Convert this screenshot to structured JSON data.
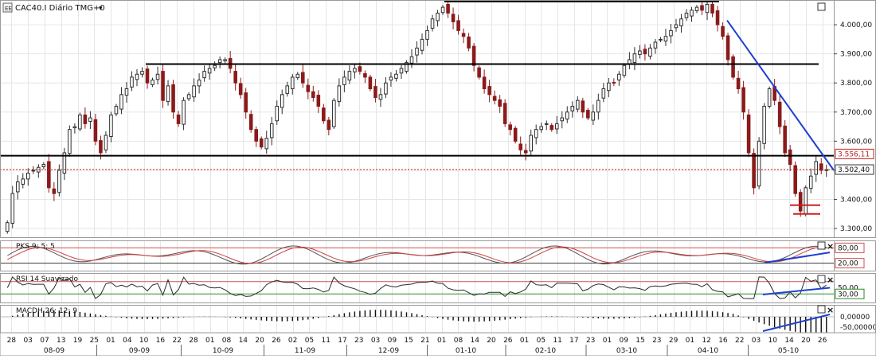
{
  "title": "CAC40.I Diário TMG+0",
  "title_arrow": "▾",
  "colors": {
    "up_candle": "#2f2f2f",
    "down_candle": "#8b1a1a",
    "trendline_blue": "#1f3fd0",
    "horizontal_line": "#000000",
    "last_price_line": "#d02020",
    "stoch_fast": "#555555",
    "stoch_slow": "#d04040",
    "overbought_line": "#d05050",
    "oversold_line": "#3a3a3a",
    "rsi_line": "#2a2a2a",
    "rsi_30_line": "#2a8a2a",
    "macd_bar": "#111111",
    "price_label_red": "#c02020",
    "grid": "#e6e6e6"
  },
  "chart_data": {
    "type": "candlestick",
    "main": {
      "y_ticks": [
        "3.300,00",
        "3.400,00",
        "3.500,00",
        "3.600,00",
        "3.700,00",
        "3.800,00",
        "3.900,00",
        "4.000,00"
      ],
      "ylim": [
        3270,
        4085
      ],
      "price_labels": [
        "3.556,11",
        "3.502,40"
      ],
      "price_levels": [
        3556.11,
        3502.4
      ],
      "resistance_levels": [
        4080,
        3865,
        3550
      ],
      "trendline": {
        "from": [
          "22 abr",
          4015
        ],
        "to": [
          "30 mai",
          3500
        ]
      },
      "close_series": [
        3320,
        3420,
        3460,
        3470,
        3490,
        3500,
        3510,
        3520,
        3440,
        3420,
        3500,
        3560,
        3640,
        3650,
        3690,
        3660,
        3680,
        3600,
        3560,
        3620,
        3690,
        3720,
        3760,
        3780,
        3820,
        3830,
        3840,
        3800,
        3810,
        3830,
        3740,
        3790,
        3700,
        3660,
        3740,
        3760,
        3790,
        3810,
        3840,
        3850,
        3860,
        3880,
        3880,
        3850,
        3800,
        3760,
        3700,
        3640,
        3600,
        3580,
        3610,
        3660,
        3720,
        3760,
        3790,
        3820,
        3830,
        3800,
        3770,
        3750,
        3720,
        3670,
        3640,
        3740,
        3790,
        3820,
        3840,
        3850,
        3840,
        3820,
        3780,
        3750,
        3760,
        3800,
        3820,
        3830,
        3850,
        3870,
        3890,
        3920,
        3950,
        3980,
        4020,
        4040,
        4060,
        4040,
        4010,
        3980,
        3960,
        3920,
        3860,
        3820,
        3780,
        3760,
        3740,
        3720,
        3660,
        3640,
        3600,
        3570,
        3560,
        3620,
        3640,
        3650,
        3660,
        3640,
        3660,
        3680,
        3700,
        3720,
        3740,
        3700,
        3680,
        3700,
        3740,
        3780,
        3800,
        3800,
        3830,
        3860,
        3880,
        3900,
        3910,
        3900,
        3920,
        3940,
        3950,
        3960,
        3980,
        4000,
        4020,
        4040,
        4050,
        4060,
        4050,
        4070,
        4040,
        4000,
        3960,
        3880,
        3820,
        3780,
        3700,
        3560,
        3440,
        3600,
        3720,
        3780,
        3740,
        3650,
        3560,
        3520,
        3420,
        3360,
        3440,
        3480,
        3530,
        3500,
        3502
      ]
    },
    "stochastic": {
      "label": "PKS 9; 5; 5",
      "tick_labels": [
        "80,00",
        "20,00"
      ],
      "levels": [
        80,
        20
      ]
    },
    "rsi": {
      "label": "RSI 14 Suavizado",
      "tick_labels": [
        "50,00",
        "30,00"
      ],
      "levels": [
        70,
        30
      ]
    },
    "macd": {
      "label": "MACDH 26; 12; 9",
      "tick_labels": [
        "0,00000",
        "-50,00000"
      ]
    },
    "x_axis": {
      "days": [
        "28",
        "03",
        "07",
        "13",
        "19",
        "25",
        "01",
        "04",
        "10",
        "16",
        "22",
        "28",
        "01",
        "08",
        "14",
        "20",
        "26",
        "02",
        "05",
        "11",
        "17",
        "23",
        "03",
        "09",
        "15",
        "21",
        "01",
        "08",
        "14",
        "20",
        "26",
        "01",
        "05",
        "11",
        "17",
        "23",
        "01",
        "09",
        "15",
        "23",
        "29",
        "01",
        "12",
        "16",
        "22",
        "03",
        "10",
        "14",
        "20",
        "26"
      ],
      "months": [
        "08-09",
        "09-09",
        "10-09",
        "11-09",
        "12-09",
        "01-10",
        "02-10",
        "03-10",
        "04-10",
        "05-10"
      ]
    }
  }
}
